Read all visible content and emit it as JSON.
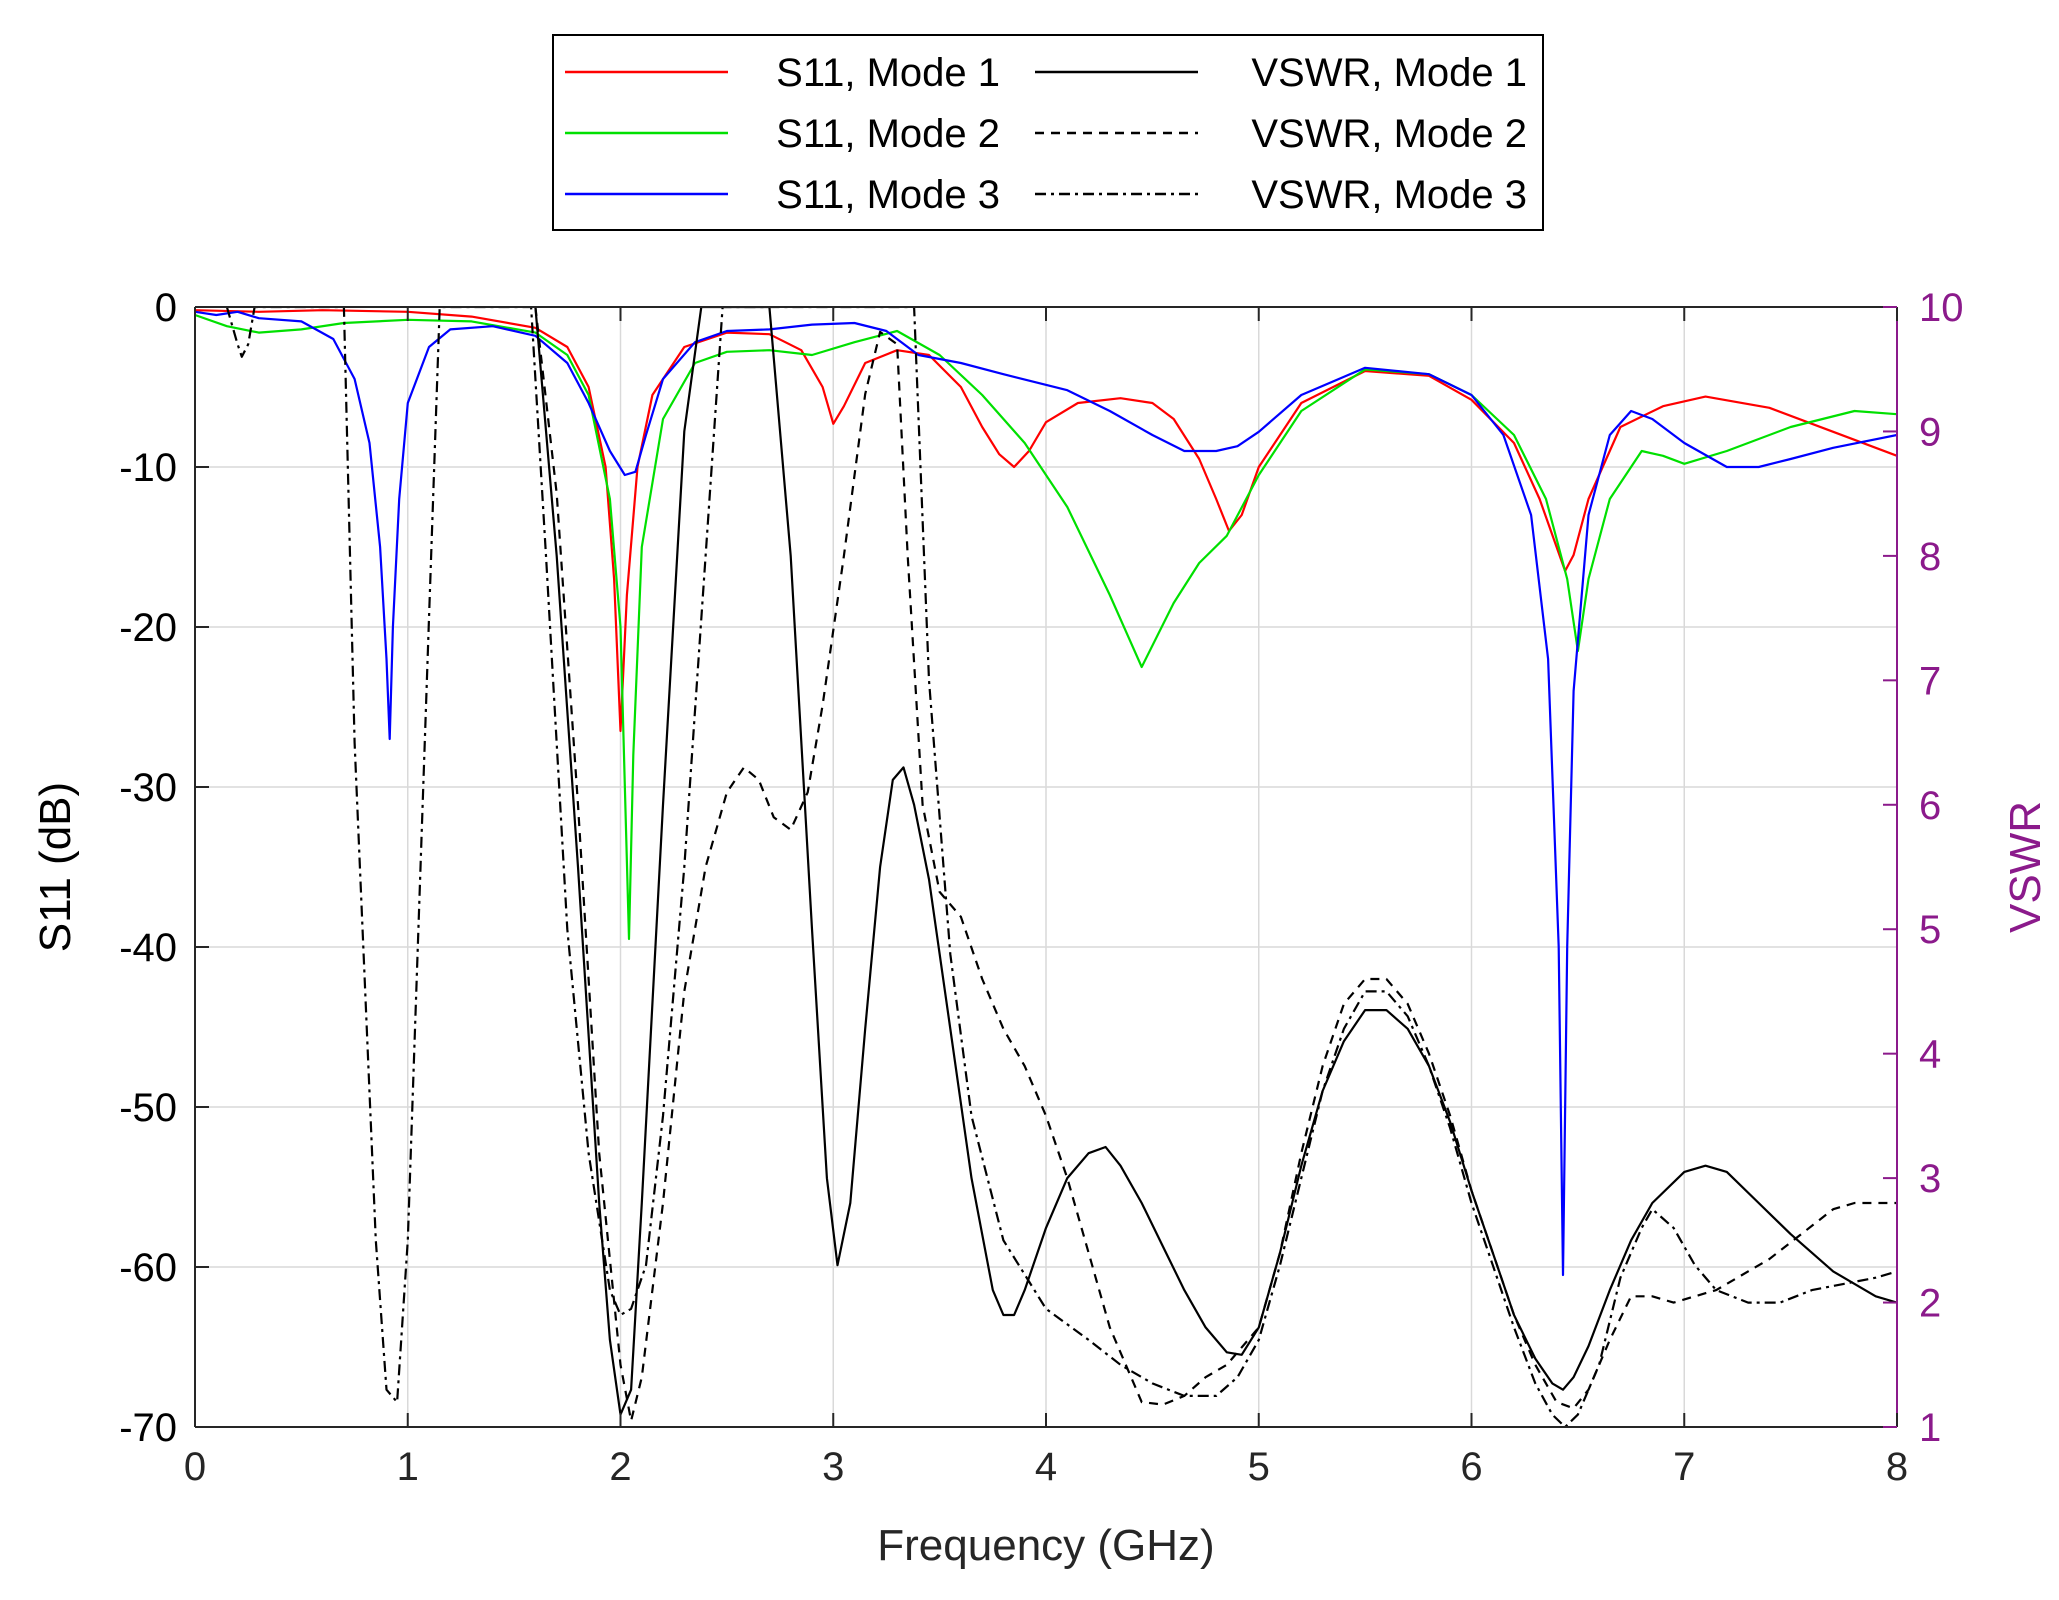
{
  "chart_data": {
    "type": "line",
    "xlabel": "Frequency (GHz)",
    "ylabel_left": "S11 (dB)",
    "ylabel_right": "VSWR",
    "xlim": [
      0,
      8
    ],
    "ylim_left": [
      -70,
      0
    ],
    "ylim_right": [
      1,
      10
    ],
    "xticks": [
      "0",
      "1",
      "2",
      "3",
      "4",
      "5",
      "6",
      "7",
      "8"
    ],
    "yticks_left": [
      "0",
      "-10",
      "-20",
      "-30",
      "-40",
      "-50",
      "-60",
      "-70"
    ],
    "yticks_right": [
      "1",
      "2",
      "3",
      "4",
      "5",
      "6",
      "7",
      "8",
      "9",
      "10"
    ],
    "grid": true,
    "legend_position": "top-center, above plot",
    "colors": {
      "mode1": "#ff0000",
      "mode2": "#00e000",
      "mode3": "#0000ff",
      "vswr": "#000000",
      "right_axis": "#8b1a8b",
      "grid": "#d9d9d9"
    },
    "series": [
      {
        "name": "S11, Mode 1",
        "axis": "left",
        "style": "solid",
        "color_key": "mode1",
        "x": [
          0,
          0.3,
          0.6,
          1.0,
          1.3,
          1.6,
          1.75,
          1.85,
          1.93,
          1.97,
          2.0,
          2.03,
          2.08,
          2.15,
          2.3,
          2.5,
          2.7,
          2.85,
          2.95,
          3.0,
          3.05,
          3.15,
          3.3,
          3.45,
          3.6,
          3.7,
          3.78,
          3.85,
          3.92,
          4.0,
          4.15,
          4.35,
          4.5,
          4.6,
          4.72,
          4.8,
          4.86,
          4.92,
          5.0,
          5.2,
          5.5,
          5.8,
          6.0,
          6.2,
          6.32,
          6.4,
          6.44,
          6.48,
          6.55,
          6.7,
          6.9,
          7.1,
          7.4,
          7.7,
          8.0
        ],
        "values": [
          -0.2,
          -0.3,
          -0.2,
          -0.3,
          -0.6,
          -1.3,
          -2.5,
          -5,
          -10,
          -17,
          -26.5,
          -18,
          -10,
          -5.5,
          -2.5,
          -1.6,
          -1.7,
          -2.7,
          -5,
          -7.3,
          -6.2,
          -3.5,
          -2.7,
          -3,
          -5,
          -7.5,
          -9.2,
          -10,
          -9,
          -7.2,
          -6,
          -5.7,
          -6,
          -7,
          -9.5,
          -12,
          -14,
          -13,
          -10,
          -6,
          -4,
          -4.3,
          -5.8,
          -8.5,
          -12,
          -15,
          -16.5,
          -15.5,
          -12,
          -7.5,
          -6.2,
          -5.6,
          -6.3,
          -7.8,
          -9.3
        ]
      },
      {
        "name": "S11, Mode 2",
        "axis": "left",
        "style": "solid",
        "color_key": "mode2",
        "x": [
          0,
          0.15,
          0.3,
          0.5,
          0.7,
          1.0,
          1.3,
          1.6,
          1.75,
          1.85,
          1.95,
          2.0,
          2.04,
          2.06,
          2.1,
          2.2,
          2.35,
          2.5,
          2.7,
          2.9,
          3.1,
          3.3,
          3.5,
          3.7,
          3.9,
          4.1,
          4.3,
          4.45,
          4.6,
          4.72,
          4.85,
          5.0,
          5.2,
          5.5,
          5.8,
          6.0,
          6.2,
          6.35,
          6.45,
          6.5,
          6.55,
          6.65,
          6.8,
          6.9,
          7.0,
          7.2,
          7.5,
          7.8,
          8.0
        ],
        "values": [
          -0.5,
          -1.2,
          -1.6,
          -1.4,
          -1.0,
          -0.8,
          -0.9,
          -1.6,
          -3,
          -5.5,
          -12,
          -20,
          -39.5,
          -28,
          -15,
          -7,
          -3.5,
          -2.8,
          -2.7,
          -3,
          -2.2,
          -1.5,
          -3,
          -5.5,
          -8.5,
          -12.5,
          -18,
          -22.5,
          -18.5,
          -16,
          -14.3,
          -10.5,
          -6.5,
          -3.9,
          -4.2,
          -5.5,
          -8,
          -12,
          -17,
          -21.5,
          -17,
          -12,
          -9,
          -9.3,
          -9.8,
          -9,
          -7.5,
          -6.5,
          -6.7
        ]
      },
      {
        "name": "S11, Mode 3",
        "axis": "left",
        "style": "solid",
        "color_key": "mode3",
        "x": [
          0,
          0.1,
          0.2,
          0.3,
          0.5,
          0.65,
          0.75,
          0.82,
          0.87,
          0.9,
          0.915,
          0.93,
          0.96,
          1.0,
          1.1,
          1.2,
          1.4,
          1.6,
          1.75,
          1.85,
          1.95,
          2.02,
          2.07,
          2.12,
          2.2,
          2.35,
          2.5,
          2.7,
          2.9,
          3.1,
          3.25,
          3.4,
          3.6,
          3.8,
          4.1,
          4.3,
          4.5,
          4.65,
          4.8,
          4.9,
          5.0,
          5.2,
          5.5,
          5.8,
          6.0,
          6.15,
          6.28,
          6.36,
          6.41,
          6.43,
          6.45,
          6.48,
          6.55,
          6.65,
          6.75,
          6.85,
          7.0,
          7.2,
          7.35,
          7.5,
          7.7,
          8.0
        ],
        "values": [
          -0.3,
          -0.5,
          -0.3,
          -0.7,
          -0.9,
          -2,
          -4.5,
          -8.5,
          -15,
          -22,
          -27,
          -20,
          -12,
          -6,
          -2.5,
          -1.4,
          -1.2,
          -1.8,
          -3.5,
          -6,
          -9,
          -10.5,
          -10.3,
          -8,
          -4.5,
          -2.2,
          -1.5,
          -1.4,
          -1.1,
          -1,
          -1.5,
          -3,
          -3.5,
          -4.2,
          -5.2,
          -6.5,
          -8,
          -9,
          -9,
          -8.7,
          -7.8,
          -5.5,
          -3.8,
          -4.2,
          -5.5,
          -8,
          -13,
          -22,
          -40,
          -60.5,
          -40,
          -24,
          -13,
          -8,
          -6.5,
          -7,
          -8.5,
          -10,
          -10,
          -9.5,
          -8.8,
          -8
        ]
      },
      {
        "name": "VSWR, Mode 1",
        "axis": "right",
        "style": "solid",
        "color_key": "vswr",
        "x": [
          1.6,
          1.7,
          1.8,
          1.9,
          1.95,
          2.0,
          2.05,
          2.1,
          2.2,
          2.3,
          2.38,
          2.45,
          2.6,
          2.7,
          2.8,
          2.9,
          2.97,
          3.02,
          3.08,
          3.15,
          3.22,
          3.28,
          3.33,
          3.38,
          3.45,
          3.55,
          3.65,
          3.75,
          3.8,
          3.85,
          3.9,
          4.0,
          4.1,
          4.2,
          4.28,
          4.35,
          4.45,
          4.55,
          4.65,
          4.75,
          4.85,
          4.92,
          5.0,
          5.1,
          5.2,
          5.3,
          5.4,
          5.5,
          5.6,
          5.7,
          5.8,
          5.9,
          6.0,
          6.1,
          6.2,
          6.3,
          6.38,
          6.43,
          6.48,
          6.55,
          6.65,
          6.75,
          6.85,
          7.0,
          7.1,
          7.2,
          7.35,
          7.5,
          7.7,
          7.9,
          8.0
        ],
        "values": [
          10,
          8,
          5.5,
          2.8,
          1.7,
          1.1,
          1.3,
          2.8,
          6,
          9,
          10,
          10,
          10,
          10,
          8,
          5,
          3,
          2.3,
          2.8,
          4.2,
          5.5,
          6.2,
          6.3,
          6,
          5.4,
          4.2,
          3,
          2.1,
          1.9,
          1.9,
          2.1,
          2.6,
          3,
          3.2,
          3.25,
          3.1,
          2.8,
          2.45,
          2.1,
          1.8,
          1.6,
          1.58,
          1.8,
          2.4,
          3.1,
          3.7,
          4.1,
          4.35,
          4.35,
          4.2,
          3.9,
          3.45,
          2.9,
          2.4,
          1.9,
          1.55,
          1.35,
          1.3,
          1.4,
          1.65,
          2.1,
          2.5,
          2.8,
          3.05,
          3.1,
          3.05,
          2.8,
          2.55,
          2.25,
          2.05,
          2.0
        ]
      },
      {
        "name": "VSWR, Mode 2",
        "axis": "right",
        "style": "dashed",
        "color_key": "vswr",
        "x": [
          1.6,
          1.7,
          1.8,
          1.9,
          2.0,
          2.05,
          2.1,
          2.2,
          2.3,
          2.4,
          2.5,
          2.58,
          2.65,
          2.72,
          2.8,
          2.88,
          2.95,
          3.05,
          3.15,
          3.22,
          3.3,
          3.35,
          3.42,
          3.5,
          3.6,
          3.7,
          3.8,
          3.9,
          4.0,
          4.1,
          4.2,
          4.3,
          4.4,
          4.45,
          4.55,
          4.65,
          4.75,
          4.85,
          5.0,
          5.1,
          5.2,
          5.3,
          5.4,
          5.5,
          5.6,
          5.7,
          5.8,
          5.9,
          6.0,
          6.1,
          6.2,
          6.3,
          6.4,
          6.48,
          6.55,
          6.65,
          6.75,
          6.85,
          6.95,
          7.05,
          7.15,
          7.25,
          7.4,
          7.55,
          7.7,
          7.8,
          7.9,
          8.0
        ],
        "values": [
          10,
          8.5,
          6,
          3.2,
          1.5,
          1.05,
          1.4,
          2.8,
          4.5,
          5.5,
          6.1,
          6.3,
          6.2,
          5.9,
          5.8,
          6.1,
          6.8,
          8,
          9.3,
          9.8,
          9.7,
          8,
          6,
          5.3,
          5.1,
          4.6,
          4.2,
          3.9,
          3.5,
          3,
          2.4,
          1.8,
          1.4,
          1.2,
          1.18,
          1.25,
          1.4,
          1.5,
          1.8,
          2.4,
          3.2,
          3.9,
          4.4,
          4.6,
          4.6,
          4.4,
          4.0,
          3.5,
          2.9,
          2.4,
          1.9,
          1.5,
          1.2,
          1.15,
          1.3,
          1.7,
          2.05,
          2.05,
          2.0,
          2.05,
          2.1,
          2.2,
          2.35,
          2.55,
          2.75,
          2.8,
          2.8,
          2.8
        ]
      },
      {
        "name": "VSWR, Mode 3",
        "axis": "right",
        "style": "dashdot",
        "color_key": "vswr",
        "x": [
          0.15,
          0.2,
          0.22,
          0.25,
          0.28,
          0.7,
          0.75,
          0.8,
          0.85,
          0.9,
          0.95,
          1.0,
          1.05,
          1.1,
          1.15,
          1.58,
          1.65,
          1.75,
          1.85,
          1.95,
          2.0,
          2.05,
          2.12,
          2.2,
          2.3,
          2.4,
          2.48,
          3.38,
          3.45,
          3.55,
          3.65,
          3.8,
          4.0,
          4.2,
          4.35,
          4.5,
          4.65,
          4.8,
          4.9,
          5.0,
          5.1,
          5.2,
          5.3,
          5.4,
          5.5,
          5.6,
          5.7,
          5.8,
          5.9,
          6.0,
          6.1,
          6.2,
          6.3,
          6.38,
          6.44,
          6.5,
          6.6,
          6.7,
          6.8,
          6.85,
          6.95,
          7.05,
          7.15,
          7.3,
          7.45,
          7.6,
          7.75,
          7.9,
          8.0
        ],
        "values": [
          10,
          9.7,
          9.6,
          9.7,
          10,
          10,
          6.5,
          4.5,
          2.5,
          1.3,
          1.2,
          2.5,
          5,
          7.5,
          10,
          10,
          8,
          5,
          3.2,
          2.1,
          1.9,
          1.95,
          2.3,
          3.5,
          5.5,
          8,
          10,
          10,
          7,
          4.8,
          3.5,
          2.5,
          1.95,
          1.7,
          1.5,
          1.35,
          1.25,
          1.25,
          1.4,
          1.7,
          2.3,
          3.0,
          3.7,
          4.2,
          4.5,
          4.5,
          4.3,
          3.9,
          3.4,
          2.8,
          2.3,
          1.8,
          1.35,
          1.1,
          1.0,
          1.1,
          1.5,
          2.2,
          2.6,
          2.75,
          2.6,
          2.3,
          2.1,
          2.0,
          2.0,
          2.1,
          2.15,
          2.2,
          2.25
        ]
      }
    ]
  }
}
